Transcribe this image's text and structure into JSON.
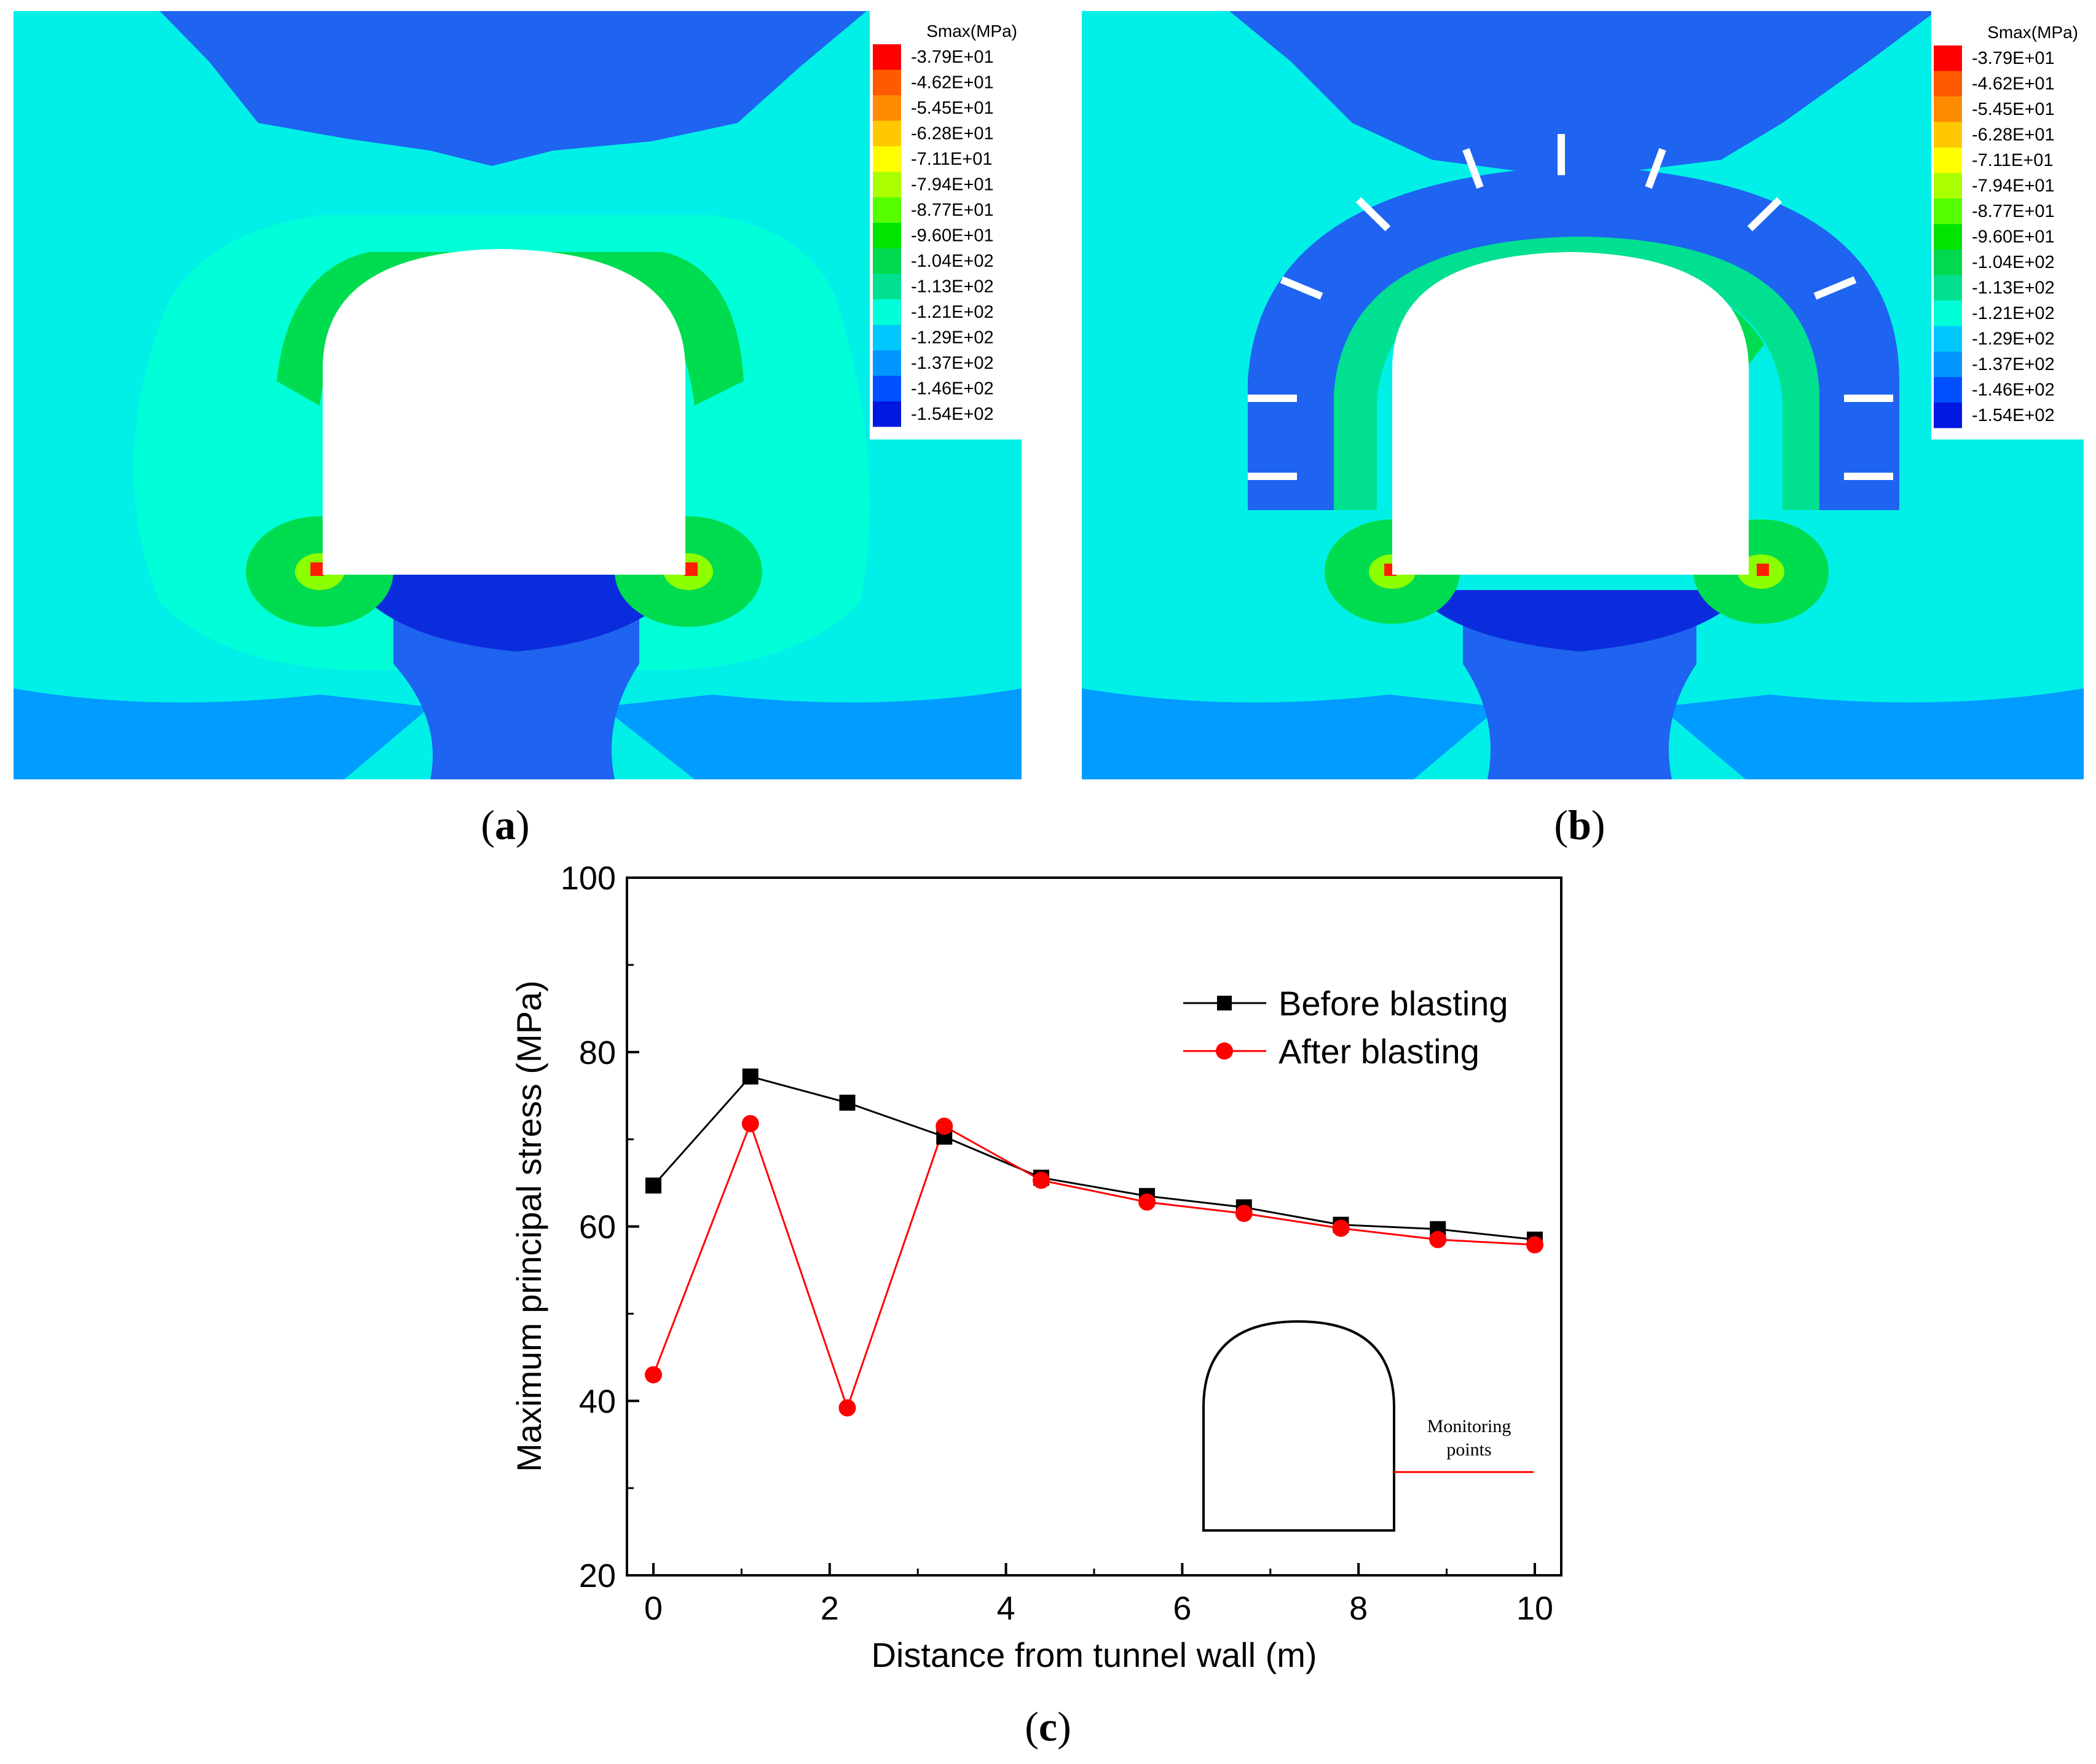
{
  "panels": {
    "a": {
      "label_open": "(",
      "label_letter": "a",
      "label_close": ")"
    },
    "b": {
      "label_open": "(",
      "label_letter": "b",
      "label_close": ")"
    },
    "c": {
      "label_open": "(",
      "label_letter": "c",
      "label_close": ")"
    }
  },
  "contour_legend": {
    "title": "Smax(MPa)",
    "levels": [
      "-3.79E+01",
      "-4.62E+01",
      "-5.45E+01",
      "-6.28E+01",
      "-7.11E+01",
      "-7.94E+01",
      "-8.77E+01",
      "-9.60E+01",
      "-1.04E+02",
      "-1.13E+02",
      "-1.21E+02",
      "-1.29E+02",
      "-1.37E+02",
      "-1.46E+02",
      "-1.54E+02"
    ],
    "colors": [
      "#ff0000",
      "#ff5a00",
      "#ff8c00",
      "#ffc800",
      "#ffff00",
      "#aaff00",
      "#55ff00",
      "#00e400",
      "#00d850",
      "#00e090",
      "#00ffd8",
      "#00c8ff",
      "#0096ff",
      "#0050ff",
      "#0018e0"
    ]
  },
  "field_colors": {
    "cyan": "#00f0e8",
    "light_blue": "#009cff",
    "mid_blue": "#1e64f0",
    "dark_blue": "#0a2cdc",
    "green": "#00dc50",
    "yellow_green": "#8cff00",
    "red": "#ff1e00"
  },
  "chart_data": {
    "type": "line",
    "title": "",
    "xlabel": "Distance from tunnel wall (m)",
    "ylabel": "Maximum principal stress (MPa)",
    "xlim": [
      -0.3,
      10.3
    ],
    "ylim": [
      20,
      100
    ],
    "xticks": [
      0,
      2,
      4,
      6,
      8,
      10
    ],
    "yticks": [
      20,
      40,
      60,
      80,
      100
    ],
    "series": [
      {
        "name": "Before blasting",
        "color": "#000000",
        "marker": "square",
        "x": [
          0,
          1.1,
          2.2,
          3.3,
          4.4,
          5.6,
          6.7,
          7.8,
          8.9,
          10
        ],
        "y": [
          64.7,
          77.2,
          74.2,
          70.3,
          65.6,
          63.5,
          62.2,
          60.2,
          59.7,
          58.5
        ]
      },
      {
        "name": "After blasting",
        "color": "#ff0000",
        "marker": "circle",
        "x": [
          0,
          1.1,
          2.2,
          3.3,
          4.4,
          5.6,
          6.7,
          7.8,
          8.9,
          10
        ],
        "y": [
          43.0,
          71.8,
          39.2,
          71.5,
          65.3,
          62.8,
          61.5,
          59.8,
          58.5,
          57.9
        ]
      }
    ],
    "legend_position": "top-right",
    "inset": {
      "label_line1": "Monitoring",
      "label_line2": "points"
    }
  }
}
